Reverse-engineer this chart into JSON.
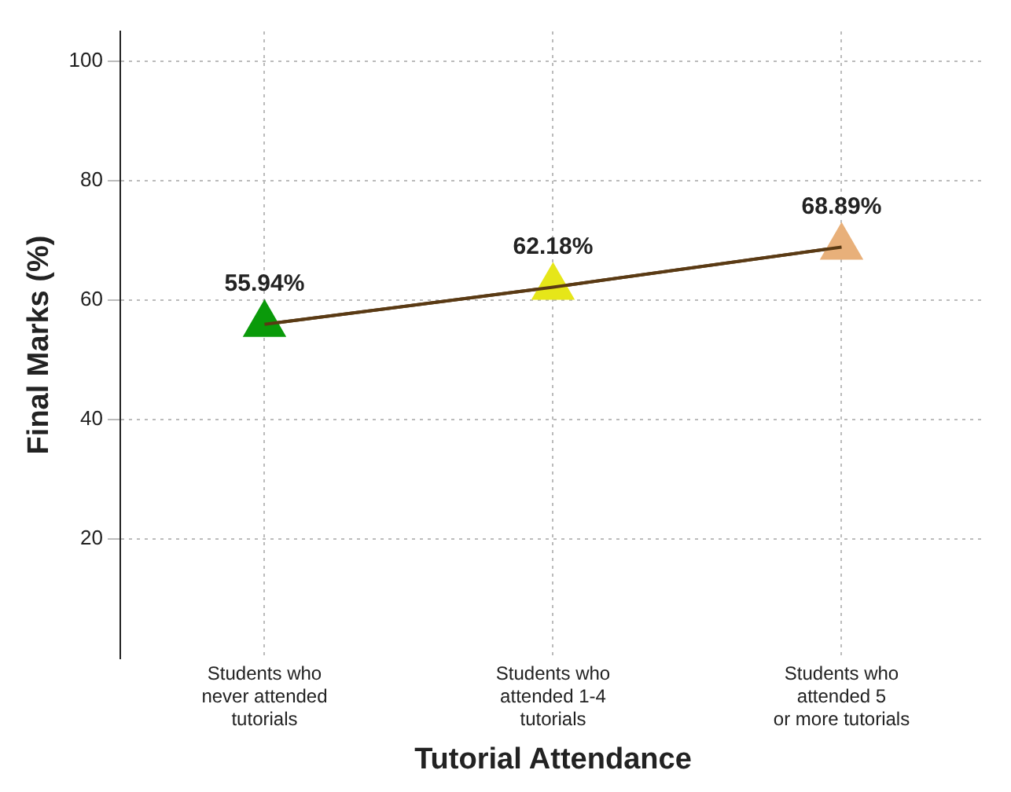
{
  "chart_data": {
    "type": "line",
    "xlabel": "Tutorial Attendance",
    "ylabel": "Final Marks (%)",
    "categories": [
      "Students who\nnever attended\ntutorials",
      "Students who\nattended 1-4\ntutorials",
      "Students who\nattended 5\nor more tutorials"
    ],
    "series": [
      {
        "color": "#5a3a14",
        "colors": [
          "#0a9a0a",
          "#e6e619",
          "#e8b07a"
        ],
        "values": [
          55.94,
          62.18,
          68.89
        ],
        "value_labels": [
          "55.94%",
          "62.18%",
          "68.89%"
        ]
      }
    ],
    "ylim": [
      0,
      105
    ],
    "yticks": [
      20,
      40,
      60,
      80,
      100
    ],
    "grid": true,
    "marker": "triangle",
    "line_style": "solid",
    "legend": false
  }
}
